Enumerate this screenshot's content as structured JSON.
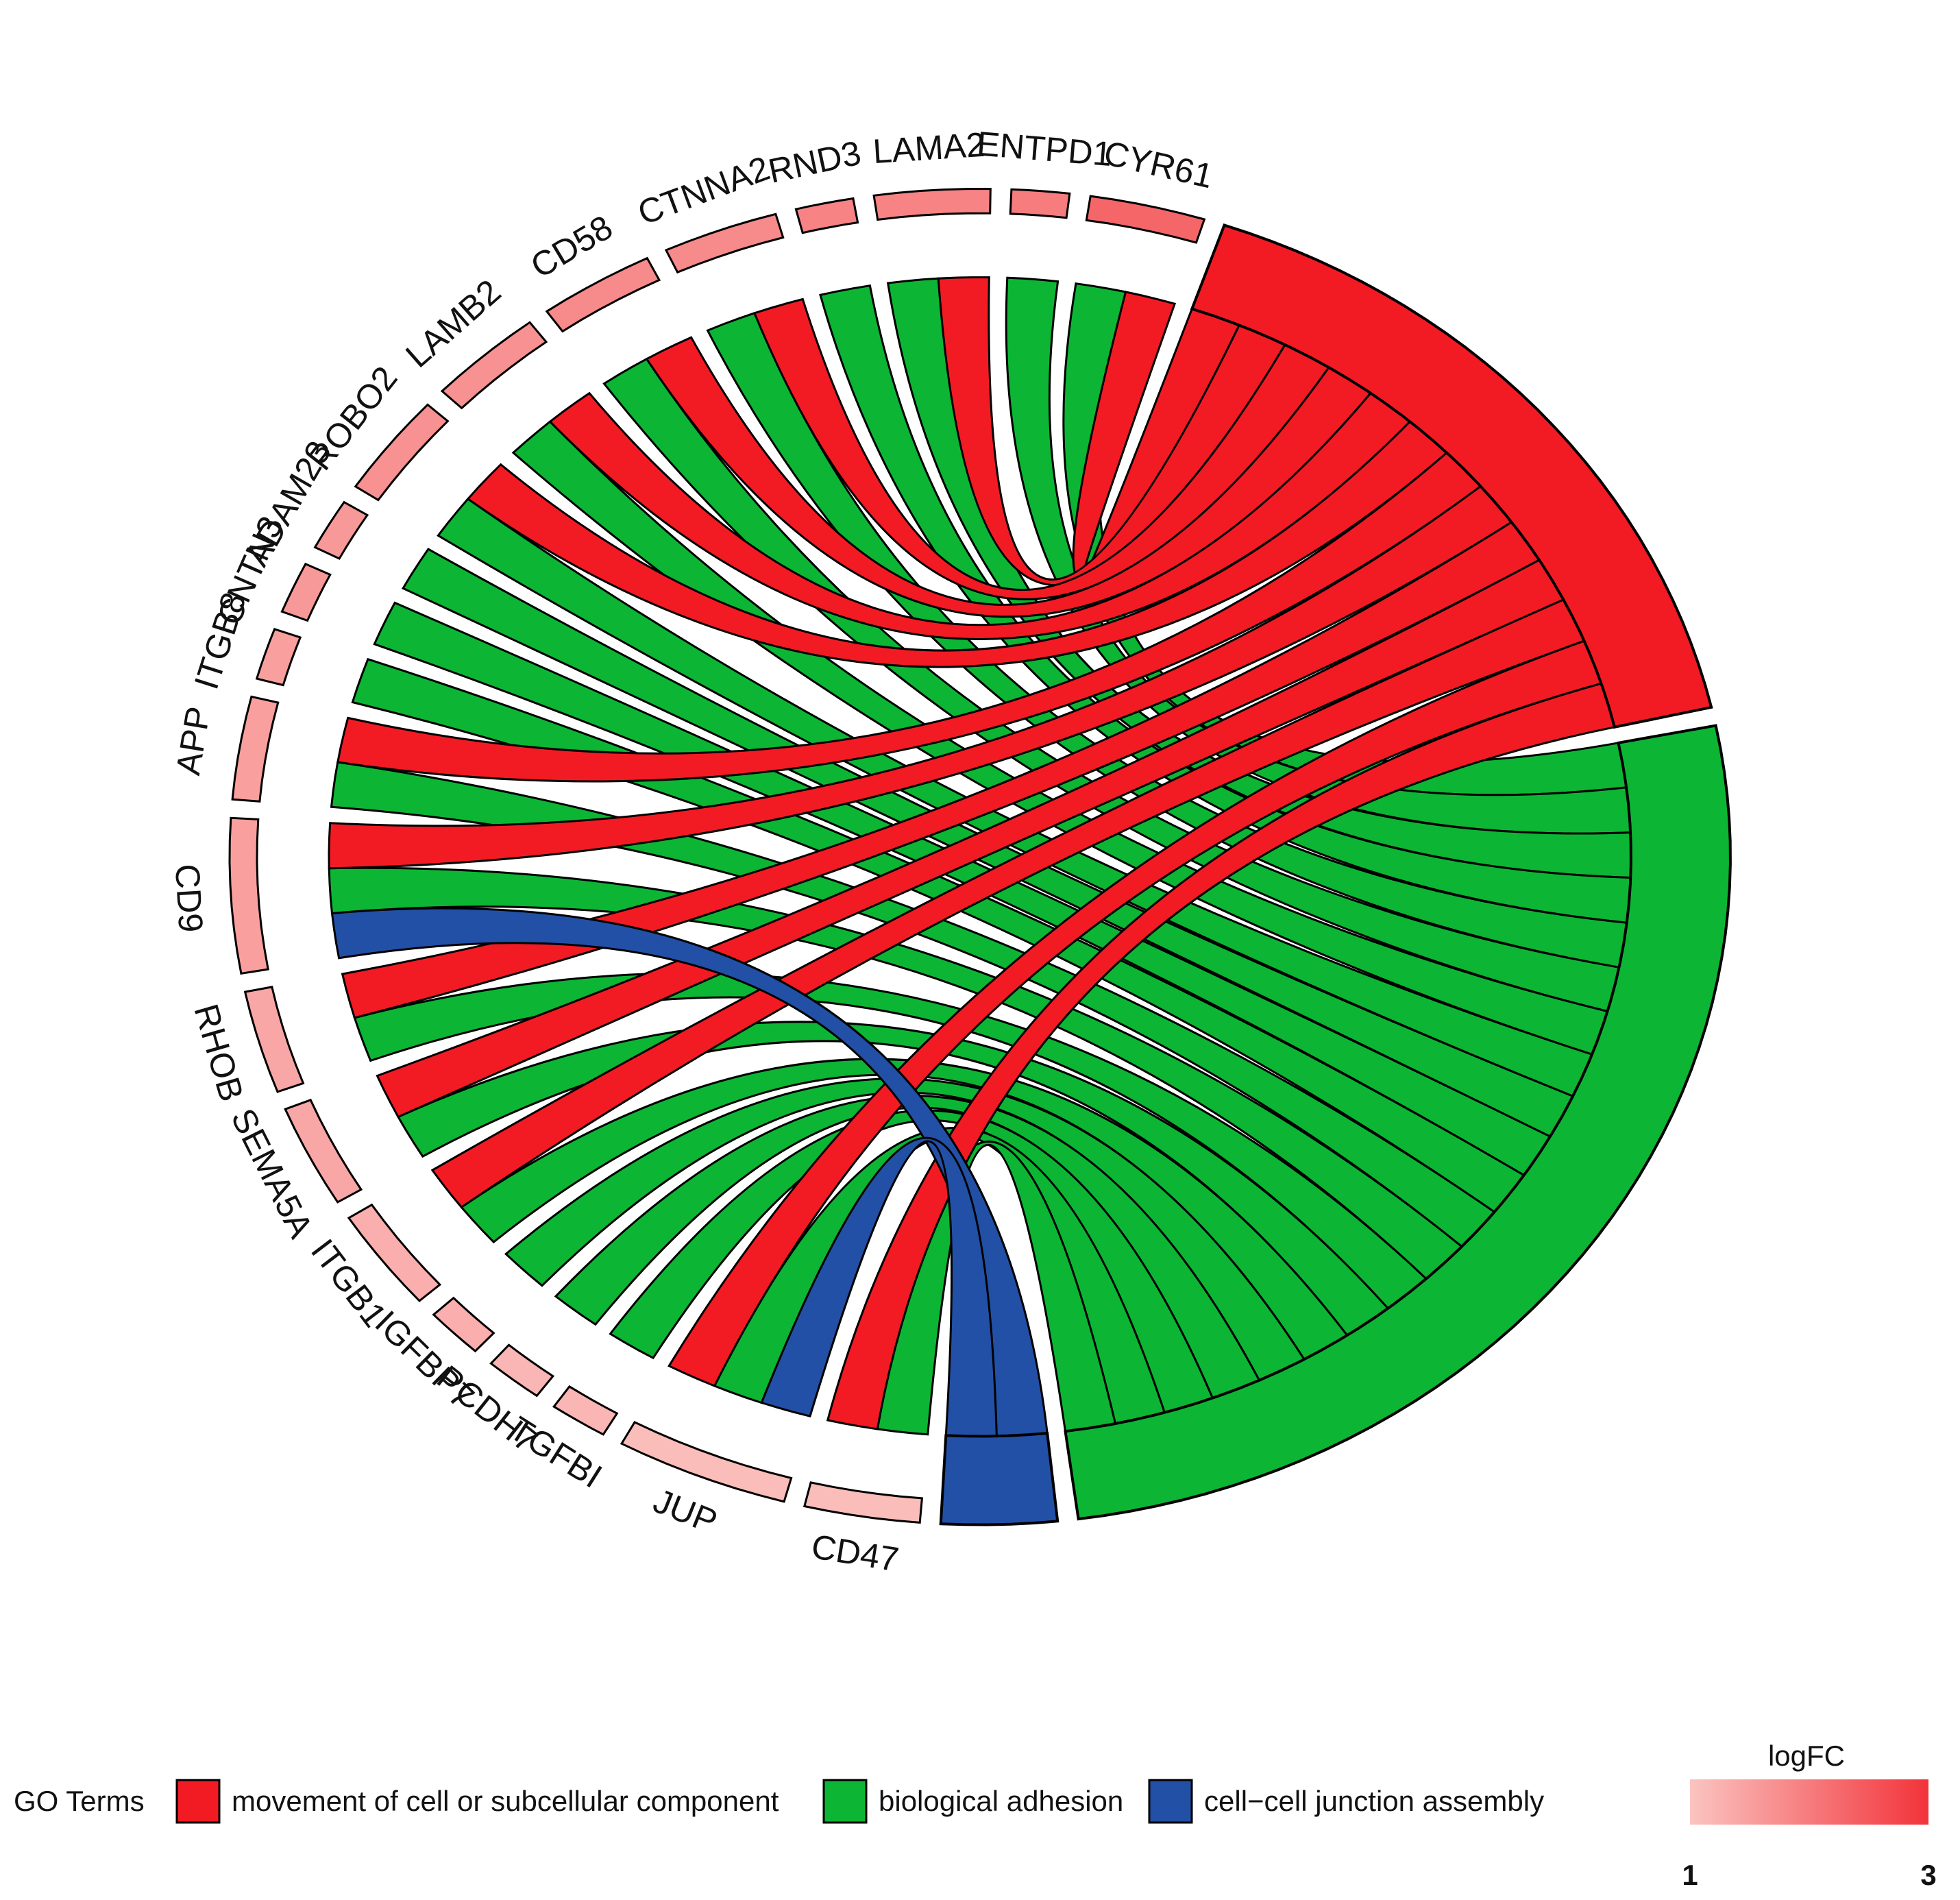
{
  "chart_data": {
    "type": "chord",
    "genes": [
      {
        "name": "CYR61",
        "logFC": 2.3,
        "terms": [
          "movement of cell or subcellular component",
          "biological adhesion"
        ]
      },
      {
        "name": "ENTPD1",
        "logFC": 2.0,
        "terms": [
          "biological adhesion"
        ]
      },
      {
        "name": "LAMA2",
        "logFC": 1.9,
        "terms": [
          "movement of cell or subcellular component",
          "biological adhesion"
        ]
      },
      {
        "name": "RND3",
        "logFC": 1.9,
        "terms": [
          "biological adhesion"
        ]
      },
      {
        "name": "CTNNA2",
        "logFC": 1.8,
        "terms": [
          "movement of cell or subcellular component",
          "biological adhesion"
        ]
      },
      {
        "name": "CD58",
        "logFC": 1.8,
        "terms": [
          "movement of cell or subcellular component",
          "biological adhesion"
        ]
      },
      {
        "name": "LAMB2",
        "logFC": 1.7,
        "terms": [
          "movement of cell or subcellular component",
          "biological adhesion"
        ]
      },
      {
        "name": "ROBO2",
        "logFC": 1.7,
        "terms": [
          "movement of cell or subcellular component",
          "biological adhesion"
        ]
      },
      {
        "name": "ADAM23",
        "logFC": 1.6,
        "terms": [
          "biological adhesion"
        ]
      },
      {
        "name": "CNTN3",
        "logFC": 1.6,
        "terms": [
          "biological adhesion"
        ]
      },
      {
        "name": "ITGB8",
        "logFC": 1.5,
        "terms": [
          "biological adhesion"
        ]
      },
      {
        "name": "APP",
        "logFC": 1.5,
        "terms": [
          "movement of cell or subcellular component",
          "biological adhesion"
        ]
      },
      {
        "name": "CD9",
        "logFC": 1.5,
        "terms": [
          "movement of cell or subcellular component",
          "biological adhesion",
          "cell-cell junction assembly"
        ]
      },
      {
        "name": "RHOB",
        "logFC": 1.4,
        "terms": [
          "movement of cell or subcellular component",
          "biological adhesion"
        ]
      },
      {
        "name": "SEMA5A",
        "logFC": 1.4,
        "terms": [
          "movement of cell or subcellular component",
          "biological adhesion"
        ]
      },
      {
        "name": "ITGB1",
        "logFC": 1.3,
        "terms": [
          "movement of cell or subcellular component",
          "biological adhesion"
        ]
      },
      {
        "name": "IGFBP7",
        "logFC": 1.3,
        "terms": [
          "biological adhesion"
        ]
      },
      {
        "name": "PCDH7",
        "logFC": 1.2,
        "terms": [
          "biological adhesion"
        ]
      },
      {
        "name": "TGFBI",
        "logFC": 1.2,
        "terms": [
          "biological adhesion"
        ]
      },
      {
        "name": "JUP",
        "logFC": 1.1,
        "terms": [
          "movement of cell or subcellular component",
          "biological adhesion",
          "cell-cell junction assembly"
        ]
      },
      {
        "name": "CD47",
        "logFC": 1.1,
        "terms": [
          "movement of cell or subcellular component",
          "biological adhesion"
        ]
      }
    ],
    "go_terms": [
      {
        "name": "cell-cell junction assembly",
        "color": "#2250a6"
      },
      {
        "name": "biological adhesion",
        "color": "#0cb634"
      },
      {
        "name": "movement of cell or subcellular component",
        "color": "#f21b24"
      }
    ],
    "legend": {
      "title": "GO Terms",
      "items": [
        {
          "label": "movement of cell or subcellular component",
          "color": "#f21b24"
        },
        {
          "label": "biological adhesion",
          "color": "#0cb634"
        },
        {
          "label": "cell−cell junction assembly",
          "color": "#2250a6"
        }
      ]
    },
    "logfc_scale": {
      "title": "logFC",
      "min_label": "1",
      "max_label": "3",
      "min": 1,
      "max": 3,
      "color_low": "#fbc4c1",
      "color_high": "#f2333a"
    }
  }
}
